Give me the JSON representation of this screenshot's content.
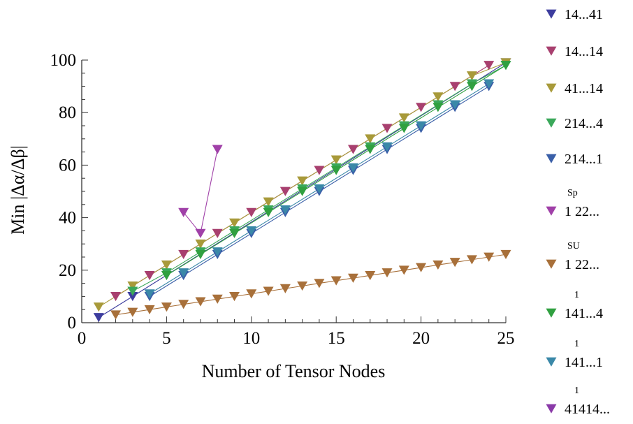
{
  "chart_data": {
    "type": "scatter",
    "xlabel": "Number of Tensor Nodes",
    "ylabel": "Min |Δα/Δβ|",
    "xlim": [
      0,
      25
    ],
    "ylim": [
      0,
      100
    ],
    "xticks": [
      "0",
      "5",
      "10",
      "15",
      "20",
      "25"
    ],
    "yticks": [
      "0",
      "20",
      "40",
      "60",
      "80",
      "100"
    ],
    "grid": false,
    "legend_position": "right",
    "series": [
      {
        "name": "14...41",
        "sup": "",
        "color": "#3d3d9e",
        "x": [
          1,
          3,
          25
        ],
        "y": [
          2,
          10,
          99
        ]
      },
      {
        "name": "14...14",
        "sup": "",
        "color": "#a8406f",
        "x": [
          2,
          4,
          6,
          8,
          10,
          12,
          14,
          16,
          18,
          20,
          22,
          24
        ],
        "y": [
          10,
          18,
          26,
          34,
          42,
          50,
          58,
          66,
          74,
          82,
          90,
          98
        ]
      },
      {
        "name": "41...14",
        "sup": "",
        "color": "#a89a3a",
        "x": [
          1,
          3,
          5,
          7,
          9,
          11,
          13,
          15,
          17,
          19,
          21,
          23,
          25
        ],
        "y": [
          6,
          14,
          22,
          30,
          38,
          46,
          54,
          62,
          70,
          78,
          86,
          94,
          99
        ]
      },
      {
        "name": "214...4",
        "sup": "",
        "color": "#3aa85a",
        "x": [
          3,
          5,
          7,
          9,
          11,
          13,
          15,
          17,
          19,
          21,
          23,
          25
        ],
        "y": [
          12,
          19,
          27,
          35,
          43,
          51,
          59,
          67,
          75,
          83,
          91,
          98
        ]
      },
      {
        "name": "214...1",
        "sup": "",
        "color": "#3a5fa8",
        "x": [
          4,
          6,
          8,
          10,
          12,
          14,
          16,
          18,
          20,
          22,
          24
        ],
        "y": [
          10,
          18,
          26,
          34,
          42,
          50,
          58,
          66,
          74,
          82,
          90
        ]
      },
      {
        "name": "1 22...",
        "sup": "Sp",
        "color": "#a040a8",
        "x": [
          6,
          7,
          8
        ],
        "y": [
          42,
          34,
          66
        ]
      },
      {
        "name": "1 22...",
        "sup": "SU",
        "color": "#a8703a",
        "x": [
          2,
          3,
          4,
          5,
          6,
          7,
          8,
          9,
          10,
          11,
          12,
          13,
          14,
          15,
          16,
          17,
          18,
          19,
          20,
          21,
          22,
          23,
          24,
          25
        ],
        "y": [
          3,
          4,
          5,
          6,
          7,
          8,
          9,
          10,
          11,
          12,
          13,
          14,
          15,
          16,
          17,
          18,
          19,
          20,
          21,
          22,
          23,
          24,
          25,
          26
        ]
      },
      {
        "name": "141...4",
        "sup": "1",
        "color": "#30a040",
        "x": [
          5,
          7,
          9,
          11,
          13,
          15,
          17,
          19,
          21,
          23,
          25
        ],
        "y": [
          18,
          26,
          34,
          42,
          50,
          58,
          66,
          74,
          82,
          90,
          98
        ]
      },
      {
        "name": "141...1",
        "sup": "1",
        "color": "#3a88a8",
        "x": [
          4,
          6,
          8,
          10,
          12,
          14,
          16,
          18,
          20,
          22,
          24
        ],
        "y": [
          11,
          19,
          27,
          35,
          43,
          51,
          59,
          67,
          75,
          83,
          91
        ]
      },
      {
        "name": "41414...",
        "sup": "1",
        "color": "#8a3aa8",
        "x": [],
        "y": []
      }
    ]
  }
}
